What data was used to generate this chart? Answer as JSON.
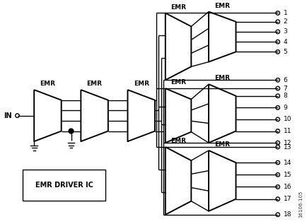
{
  "bg_color": "#ffffff",
  "line_color": "#000000",
  "fig_width": 4.35,
  "fig_height": 3.17,
  "dpi": 100,
  "watermark": "16106-105",
  "label_in": "IN",
  "label_emr_driver": "EMR DRIVER IC",
  "output_count": 18,
  "relay_ratio": 0.6,
  "lw_relay": 1.4,
  "lw_wire": 1.0
}
